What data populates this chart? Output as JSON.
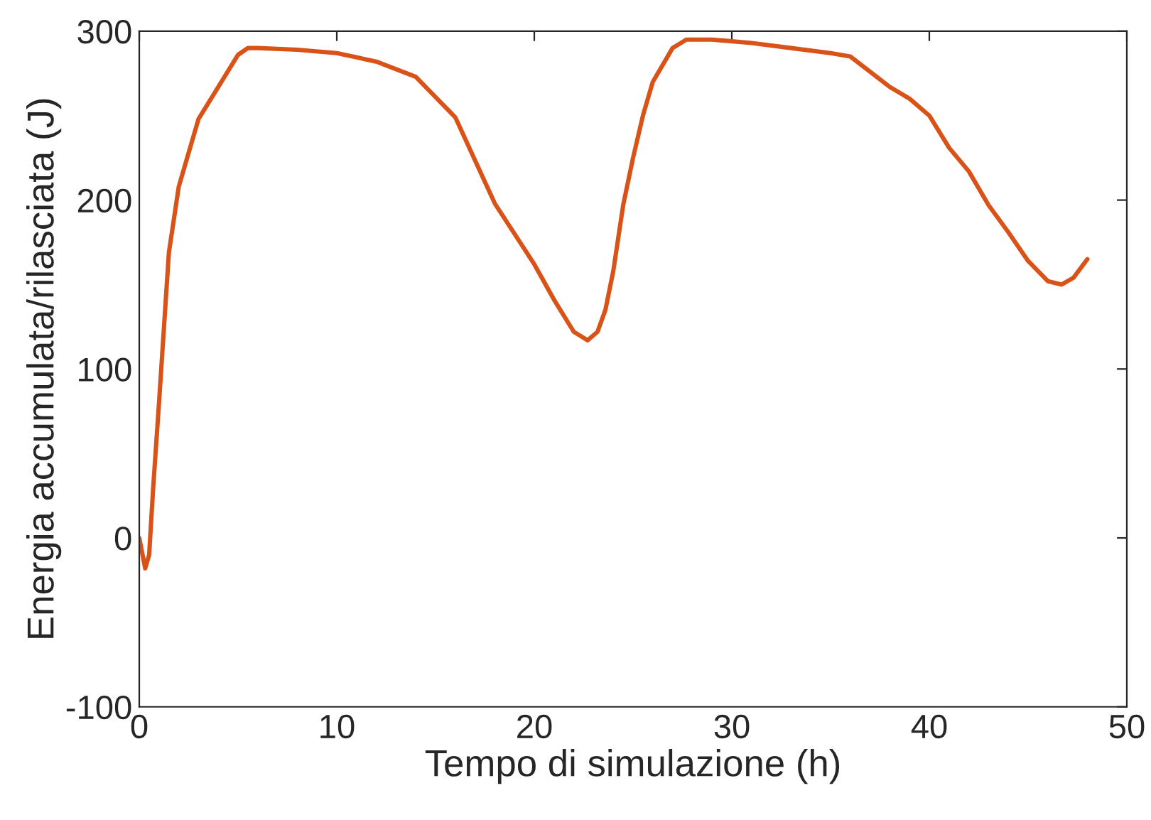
{
  "chart_data": {
    "type": "line",
    "xlabel": "Tempo di simulazione (h)",
    "ylabel": "Energia accumulata/rilasciata (J)",
    "xlim": [
      0,
      50
    ],
    "xticks": [
      0,
      10,
      20,
      30,
      40,
      50
    ],
    "ylim": [
      -100,
      300
    ],
    "yticks": [
      -100,
      0,
      100,
      200,
      300
    ],
    "grid": false,
    "marker": "none",
    "line_style": "solid",
    "series": [
      {
        "color": "#d95319",
        "x": [
          0,
          0.3,
          0.5,
          0.7,
          1,
          1.5,
          2,
          3,
          4,
          5,
          5.5,
          6,
          8,
          10,
          12,
          14,
          16,
          18,
          20,
          21,
          22,
          22.7,
          23.2,
          23.6,
          24,
          24.5,
          25,
          25.5,
          26,
          27,
          27.7,
          29,
          31,
          33,
          35,
          36,
          38,
          39,
          40,
          41,
          42,
          43,
          44,
          45,
          46,
          46.7,
          47.3,
          48
        ],
        "values": [
          0,
          -18,
          -10,
          29,
          80,
          169,
          208,
          248,
          267,
          286,
          290,
          290,
          289,
          287,
          282,
          273,
          249,
          198,
          162,
          141,
          122,
          117,
          122,
          135,
          158,
          197,
          225,
          250,
          270,
          290,
          295,
          295,
          293,
          290,
          287,
          285,
          267,
          260,
          250,
          231,
          217,
          197,
          181,
          164,
          152,
          150,
          154,
          165
        ]
      }
    ]
  }
}
